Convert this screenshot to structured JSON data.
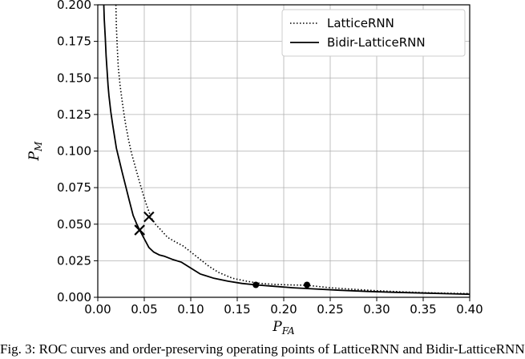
{
  "chart_data": {
    "type": "line",
    "xlabel": "P",
    "xlabel_sub": "FA",
    "ylabel": "P",
    "ylabel_sub": "M",
    "xlim": [
      0.0,
      0.4
    ],
    "ylim": [
      0.0,
      0.2
    ],
    "x_ticks": [
      "0.00",
      "0.05",
      "0.10",
      "0.15",
      "0.20",
      "0.25",
      "0.30",
      "0.35",
      "0.40"
    ],
    "y_ticks": [
      "0.000",
      "0.025",
      "0.050",
      "0.075",
      "0.100",
      "0.125",
      "0.150",
      "0.175",
      "0.200"
    ],
    "grid": true,
    "legend_position": "top-right",
    "series": [
      {
        "name": "LatticeRNN",
        "style": "dotted",
        "color": "#000000",
        "x": [
          0.0195,
          0.02,
          0.021,
          0.022,
          0.024,
          0.026,
          0.028,
          0.03,
          0.033,
          0.036,
          0.04,
          0.044,
          0.048,
          0.052,
          0.057,
          0.062,
          0.068,
          0.075,
          0.083,
          0.092,
          0.1,
          0.11,
          0.12,
          0.13,
          0.145,
          0.16,
          0.175,
          0.19,
          0.205,
          0.225,
          0.25,
          0.275,
          0.3,
          0.325,
          0.35,
          0.375,
          0.4
        ],
        "values": [
          0.2,
          0.185,
          0.17,
          0.158,
          0.145,
          0.135,
          0.126,
          0.118,
          0.108,
          0.099,
          0.09,
          0.081,
          0.072,
          0.064,
          0.055,
          0.05,
          0.046,
          0.041,
          0.038,
          0.035,
          0.031,
          0.026,
          0.021,
          0.017,
          0.013,
          0.011,
          0.0095,
          0.0088,
          0.0085,
          0.0082,
          0.0065,
          0.0055,
          0.0045,
          0.0038,
          0.0032,
          0.0028,
          0.0025
        ]
      },
      {
        "name": "Bidir-LatticeRNN",
        "style": "solid",
        "color": "#000000",
        "x": [
          0.0065,
          0.007,
          0.008,
          0.009,
          0.01,
          0.011,
          0.012,
          0.014,
          0.016,
          0.018,
          0.02,
          0.023,
          0.026,
          0.03,
          0.034,
          0.038,
          0.042,
          0.045,
          0.05,
          0.055,
          0.06,
          0.066,
          0.072,
          0.08,
          0.09,
          0.1,
          0.11,
          0.125,
          0.14,
          0.155,
          0.17,
          0.19,
          0.21,
          0.23,
          0.26,
          0.29,
          0.32,
          0.35,
          0.38,
          0.4
        ],
        "values": [
          0.2,
          0.19,
          0.178,
          0.165,
          0.155,
          0.145,
          0.138,
          0.127,
          0.118,
          0.11,
          0.102,
          0.094,
          0.086,
          0.076,
          0.066,
          0.056,
          0.05,
          0.046,
          0.04,
          0.034,
          0.031,
          0.029,
          0.028,
          0.026,
          0.024,
          0.02,
          0.016,
          0.013,
          0.011,
          0.0095,
          0.0085,
          0.0075,
          0.0065,
          0.0058,
          0.0048,
          0.004,
          0.0034,
          0.0029,
          0.0024,
          0.0021
        ]
      }
    ],
    "markers_x": [
      {
        "x": 0.045,
        "y": 0.046
      },
      {
        "x": 0.055,
        "y": 0.055
      }
    ],
    "markers_dot": [
      {
        "x": 0.17,
        "y": 0.0085
      },
      {
        "x": 0.225,
        "y": 0.0085
      }
    ]
  },
  "caption": "Fig. 3: ROC curves and order-preserving operating points of LatticeRNN and Bidir-LatticeRNN"
}
